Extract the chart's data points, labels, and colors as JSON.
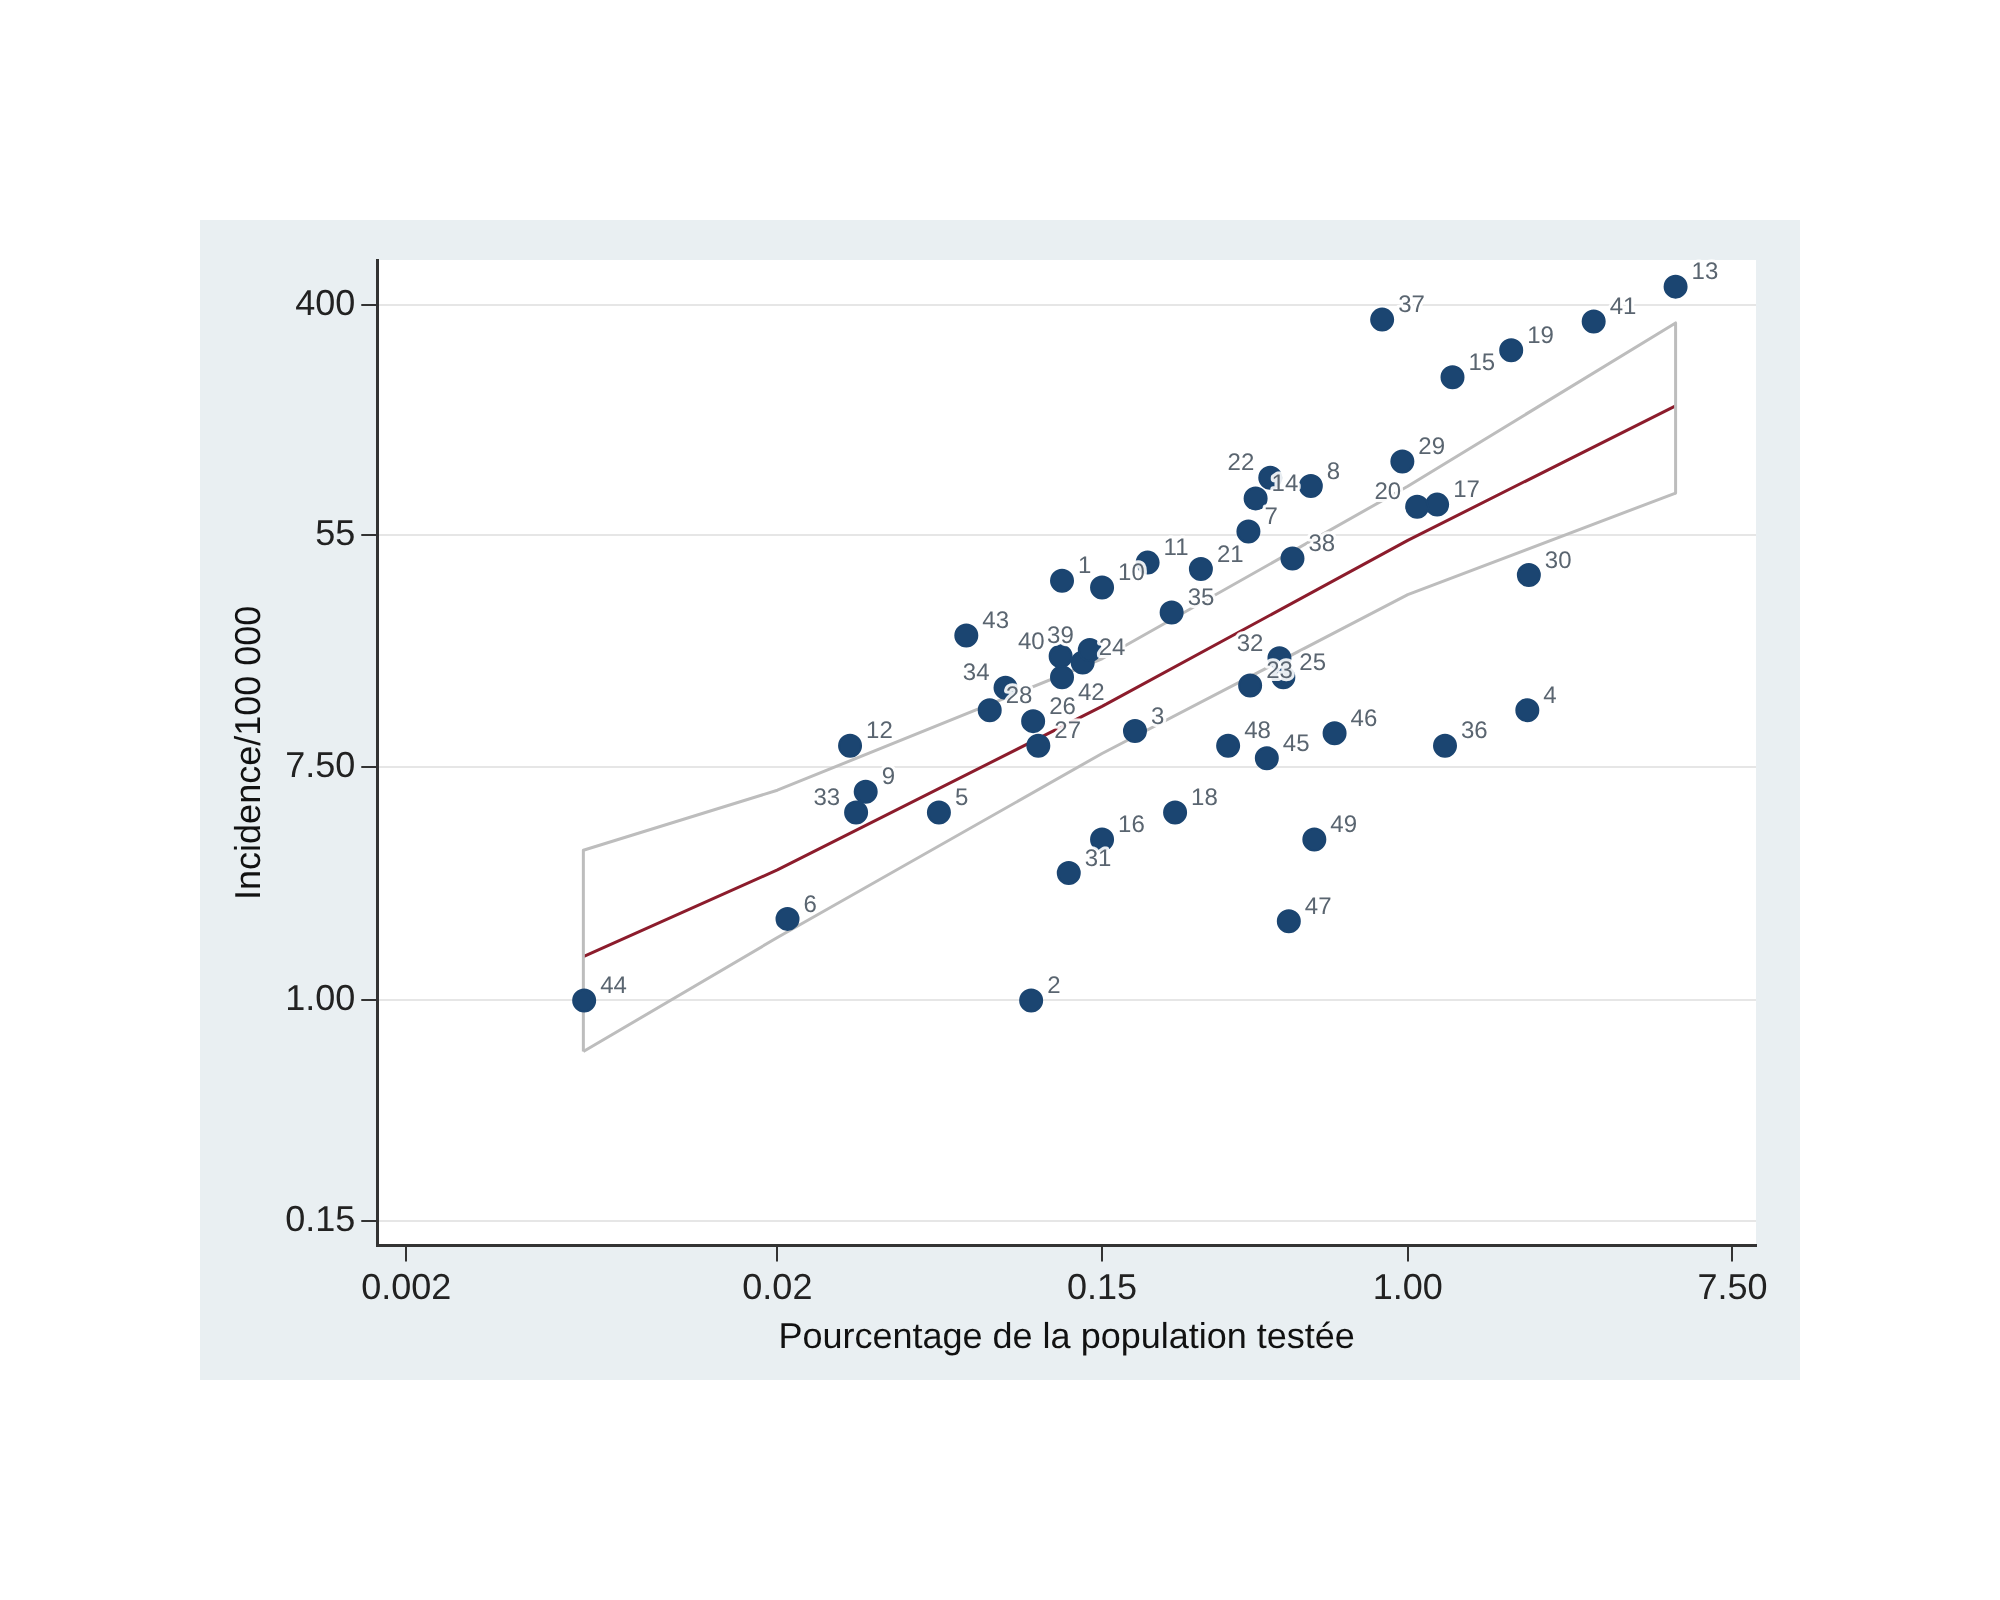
{
  "chart_data": {
    "type": "scatter",
    "xlabel": "Pourcentage de la population testée",
    "ylabel": "Incidence/100 000",
    "log": "xy",
    "grid": "y",
    "xlim": [
      0.00167,
      8.68
    ],
    "xticks": [
      0.002,
      0.02,
      0.15,
      {
        "value": 1,
        "label": "1.00"
      },
      {
        "value": 7.5,
        "label": "7.50"
      }
    ],
    "ylim": [
      0.121,
      590
    ],
    "yticks": [
      0.15,
      {
        "value": 1,
        "label": "1.00"
      },
      {
        "value": 7.5,
        "label": "7.50"
      },
      55,
      400
    ],
    "series": [
      {
        "marker": "circle",
        "color": "#1b4571",
        "x": [
          0.117,
          0.0966,
          0.184,
          2.1,
          0.0545,
          0.0213,
          0.372,
          0.548,
          0.0346,
          0.15,
          0.199,
          0.0314,
          5.27,
          0.389,
          1.32,
          0.15,
          1.2,
          0.236,
          1.9,
          1.06,
          0.277,
          0.426,
          0.376,
          0.133,
          0.462,
          0.0978,
          0.101,
          0.0747,
          0.967,
          2.12,
          0.122,
          0.451,
          0.0326,
          0.0824,
          0.231,
          1.26,
          0.853,
          0.489,
          0.139,
          0.116,
          3.17,
          0.117,
          0.0646,
          0.00603,
          0.417,
          0.635,
          0.478,
          0.328,
          0.56
        ],
        "values": [
          37.2,
          1.0,
          10.2,
          12.2,
          5.05,
          2.02,
          56.9,
          84.1,
          6.04,
          35.1,
          43.5,
          8.97,
          469,
          75.6,
          215,
          4.0,
          71.7,
          5.05,
          271,
          70.4,
          41.2,
          90.3,
          15.1,
          18.4,
          16.2,
          11.1,
          8.97,
          12.2,
          104,
          39.1,
          3.0,
          19.1,
          5.05,
          14.8,
          28.3,
          8.97,
          353,
          45.1,
          20.5,
          19.4,
          347,
          16.2,
          23.2,
          1.0,
          8.06,
          10.0,
          1.98,
          8.97,
          4.0
        ]
      },
      {
        "type": "line",
        "marker": "none",
        "color": "#bdbdbd",
        "x": [
          0.006,
          0.006,
          0.02,
          0.15,
          1.0,
          5.27,
          5.27
        ],
        "values": [
          0.644,
          3.65,
          6.12,
          19.0,
          84,
          343,
          79.2
        ]
      },
      {
        "type": "line",
        "marker": "none",
        "color": "#bdbdbd",
        "x": [
          0.006,
          0.02,
          0.15,
          1.0,
          5.27
        ],
        "values": [
          0.644,
          1.72,
          8.4,
          33,
          79.2
        ]
      },
      {
        "type": "line",
        "marker": "none",
        "color": "#8c1c2c",
        "x": [
          0.006,
          0.02,
          0.15,
          1.0,
          5.27
        ],
        "values": [
          1.46,
          3.08,
          12.6,
          52.7,
          168
        ]
      }
    ],
    "annotations": [
      {
        "text": "1",
        "x": 0.117,
        "y": 37.2
      },
      {
        "text": "2",
        "x": 0.0966,
        "y": 1.0
      },
      {
        "text": "3",
        "x": 0.184,
        "y": 10.2
      },
      {
        "text": "4",
        "x": 2.1,
        "y": 12.2
      },
      {
        "text": "5",
        "x": 0.0545,
        "y": 5.05
      },
      {
        "text": "6",
        "x": 0.0213,
        "y": 2.02
      },
      {
        "text": "7",
        "x": 0.372,
        "y": 56.9
      },
      {
        "text": "8",
        "x": 0.548,
        "y": 84.1
      },
      {
        "text": "9",
        "x": 0.0346,
        "y": 6.04
      },
      {
        "text": "10",
        "x": 0.15,
        "y": 35.1
      },
      {
        "text": "11",
        "x": 0.199,
        "y": 43.5
      },
      {
        "text": "12",
        "x": 0.0314,
        "y": 8.97
      },
      {
        "text": "13",
        "x": 5.27,
        "y": 469
      },
      {
        "text": "14",
        "x": 0.389,
        "y": 75.6
      },
      {
        "text": "15",
        "x": 1.32,
        "y": 215
      },
      {
        "text": "16",
        "x": 0.15,
        "y": 4.0
      },
      {
        "text": "17",
        "x": 1.2,
        "y": 71.7
      },
      {
        "text": "18",
        "x": 0.236,
        "y": 5.05
      },
      {
        "text": "19",
        "x": 1.9,
        "y": 271
      },
      {
        "text": "20",
        "x": 1.06,
        "y": 70.4
      },
      {
        "text": "21",
        "x": 0.277,
        "y": 41.2
      },
      {
        "text": "22",
        "x": 0.426,
        "y": 90.3
      },
      {
        "text": "23",
        "x": 0.376,
        "y": 15.1
      },
      {
        "text": "24",
        "x": 0.133,
        "y": 18.4
      },
      {
        "text": "25",
        "x": 0.462,
        "y": 16.2
      },
      {
        "text": "26",
        "x": 0.0978,
        "y": 11.1
      },
      {
        "text": "27",
        "x": 0.101,
        "y": 8.97
      },
      {
        "text": "28",
        "x": 0.0747,
        "y": 12.2
      },
      {
        "text": "29",
        "x": 0.967,
        "y": 104
      },
      {
        "text": "30",
        "x": 2.12,
        "y": 39.1
      },
      {
        "text": "31",
        "x": 0.122,
        "y": 3.0
      },
      {
        "text": "32",
        "x": 0.451,
        "y": 19.1
      },
      {
        "text": "33",
        "x": 0.0326,
        "y": 5.05
      },
      {
        "text": "34",
        "x": 0.0824,
        "y": 14.8
      },
      {
        "text": "35",
        "x": 0.231,
        "y": 28.3
      },
      {
        "text": "36",
        "x": 1.26,
        "y": 8.97
      },
      {
        "text": "37",
        "x": 0.853,
        "y": 353
      },
      {
        "text": "38",
        "x": 0.489,
        "y": 45.1
      },
      {
        "text": "39",
        "x": 0.139,
        "y": 20.5
      },
      {
        "text": "40",
        "x": 0.116,
        "y": 19.4
      },
      {
        "text": "41",
        "x": 3.17,
        "y": 347
      },
      {
        "text": "42",
        "x": 0.117,
        "y": 16.2
      },
      {
        "text": "43",
        "x": 0.0646,
        "y": 23.2
      },
      {
        "text": "44",
        "x": 0.00603,
        "y": 1.0
      },
      {
        "text": "45",
        "x": 0.417,
        "y": 8.06
      },
      {
        "text": "46",
        "x": 0.635,
        "y": 10.0
      },
      {
        "text": "47",
        "x": 0.478,
        "y": 1.98
      },
      {
        "text": "48",
        "x": 0.328,
        "y": 8.97
      },
      {
        "text": "49",
        "x": 0.56,
        "y": 4.0
      }
    ]
  }
}
